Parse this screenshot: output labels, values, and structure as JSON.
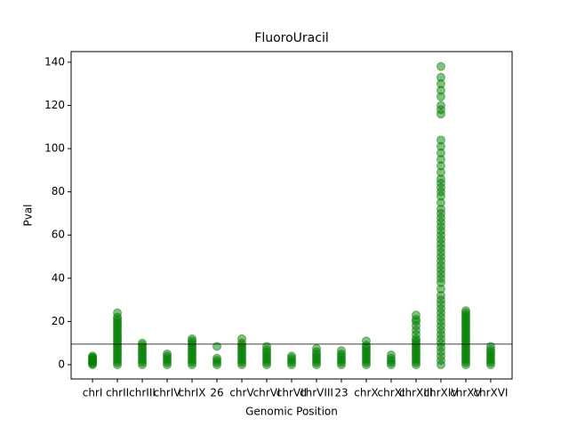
{
  "chart_data": {
    "type": "strip",
    "title": "FluoroUracil",
    "xlabel": "Genomic Position",
    "ylabel": "Pval",
    "categories": [
      "chrI",
      "chrII",
      "chrIII",
      "chrIV",
      "chrIX",
      "26",
      "chrV",
      "chrVI",
      "chrVII",
      "chrVIII",
      "23",
      "chrX",
      "chrXI",
      "chrXIII",
      "chrXIV",
      "chrXV",
      "chrXVI"
    ],
    "values": [
      [
        0,
        0.5,
        1,
        1.5,
        2,
        2.5,
        3,
        3.5,
        4
      ],
      [
        0,
        1,
        2,
        3,
        4,
        5,
        6,
        7,
        8,
        9,
        10,
        11,
        12,
        13,
        14,
        15,
        16,
        17,
        18,
        19,
        20,
        21,
        22,
        24
      ],
      [
        0,
        1,
        2,
        3,
        4,
        5,
        6,
        7,
        8,
        9,
        10
      ],
      [
        0,
        1,
        2,
        3,
        4,
        5
      ],
      [
        0,
        1,
        2,
        3,
        4,
        5,
        6,
        7,
        8,
        9,
        10,
        11,
        12
      ],
      [
        0,
        1,
        2,
        3,
        8.5
      ],
      [
        0,
        1,
        2,
        3,
        4,
        5,
        6,
        7,
        8,
        9,
        10,
        12
      ],
      [
        0,
        1,
        2,
        3,
        4,
        5,
        6,
        7,
        8.5
      ],
      [
        0,
        1,
        2,
        3,
        4
      ],
      [
        0,
        1,
        2,
        3,
        4,
        5,
        6,
        7.5
      ],
      [
        0,
        1,
        2,
        3,
        4,
        5,
        6.5
      ],
      [
        0,
        1,
        2,
        3,
        4,
        5,
        6,
        7,
        8,
        9,
        11
      ],
      [
        0,
        1,
        2,
        3,
        4.5
      ],
      [
        0,
        1,
        2,
        3,
        4,
        5,
        6,
        7,
        8,
        9,
        10,
        11,
        12,
        14,
        16,
        18,
        20,
        21,
        23
      ],
      [
        0,
        2,
        4,
        6,
        8,
        10,
        12,
        14,
        16,
        18,
        20,
        22,
        24,
        26,
        28,
        30,
        32,
        35,
        38,
        40,
        42,
        44,
        46,
        48,
        50,
        52,
        54,
        56,
        58,
        60,
        62,
        64,
        66,
        68,
        70,
        72,
        75,
        78,
        80,
        82,
        84,
        86,
        89,
        92,
        95,
        98,
        101,
        104,
        116,
        118,
        120,
        124,
        127,
        130,
        133,
        138
      ],
      [
        0,
        1,
        2,
        3,
        4,
        5,
        6,
        7,
        8,
        9,
        10,
        11,
        12,
        13,
        14,
        15,
        16,
        17,
        18,
        19,
        20,
        21,
        22,
        23,
        24,
        25
      ],
      [
        0,
        1,
        2,
        3,
        4,
        5,
        6,
        7,
        8.5
      ]
    ],
    "color": "green",
    "opacity": 0.5,
    "hline": 9.5,
    "xlim": [
      -0.86,
      16.86
    ],
    "ylim": [
      -6.6,
      144.9
    ],
    "yticks": [
      0,
      20,
      40,
      60,
      80,
      100,
      120,
      140
    ]
  }
}
